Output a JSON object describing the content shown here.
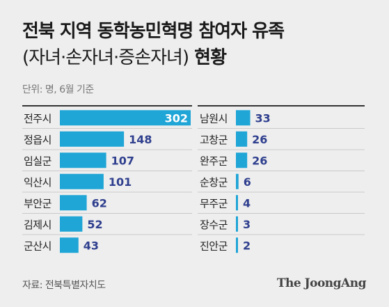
{
  "header": {
    "title_line1": "전북 지역 동학농민혁명 참여자 유족",
    "title_line2_regular": "(자녀·손자녀·증손자녀)",
    "title_line2_bold": "현황",
    "unit": "단위: 명, 6월 기준"
  },
  "footer": {
    "source": "자료: 전북특별자치도",
    "logo": "The JoongAng"
  },
  "colors": {
    "bar": "#1fa5d6",
    "value_dark": "#2f3f8e",
    "value_light": "#ffffff"
  },
  "chart_data": [
    {
      "type": "bar",
      "orientation": "horizontal",
      "categories": [
        "전주시",
        "정읍시",
        "임실군",
        "익산시",
        "부안군",
        "김제시",
        "군산시"
      ],
      "values": [
        302,
        148,
        107,
        101,
        62,
        52,
        43
      ],
      "xlim": [
        0,
        302
      ]
    },
    {
      "type": "bar",
      "orientation": "horizontal",
      "categories": [
        "남원시",
        "고창군",
        "완주군",
        "순창군",
        "무주군",
        "장수군",
        "진안군"
      ],
      "values": [
        33,
        26,
        26,
        6,
        4,
        3,
        2
      ],
      "xlim": [
        0,
        302
      ]
    }
  ]
}
